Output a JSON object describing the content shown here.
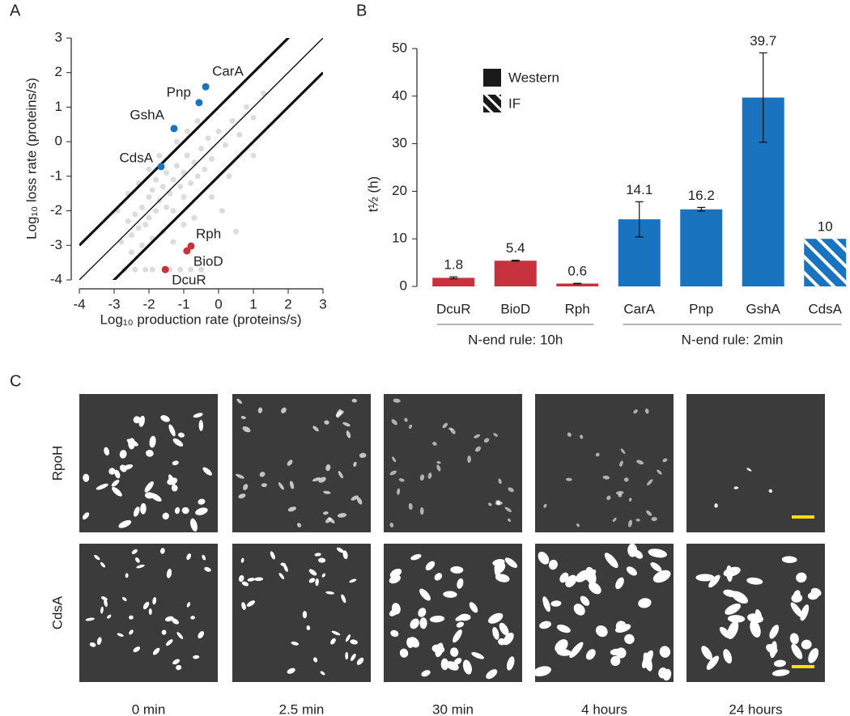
{
  "chart_data": [
    {
      "type": "scatter",
      "panel_label": "A",
      "xlabel": "Log₁₀ production rate (proteins/s)",
      "ylabel": "Log₁₀ loss rate (proteins/s)",
      "xlim": [
        -4,
        3
      ],
      "ylim": [
        -4,
        3
      ],
      "xticks": [
        -4,
        -3,
        -2,
        -1,
        0,
        1,
        2,
        3
      ],
      "yticks": [
        -4,
        -3,
        -2,
        -1,
        0,
        1,
        2,
        3
      ],
      "reference_lines": [
        {
          "slope": 1,
          "intercept": 1,
          "thick": true
        },
        {
          "slope": 1,
          "intercept": 0,
          "thick": false
        },
        {
          "slope": 1,
          "intercept": -1,
          "thick": true
        }
      ],
      "background_points": {
        "color": "#8a8a8a",
        "x": [
          -2.8,
          -2.6,
          -2.5,
          -2.4,
          -2.3,
          -2.2,
          -2.1,
          -2.0,
          -2.0,
          -1.9,
          -1.8,
          -1.8,
          -1.7,
          -1.6,
          -1.5,
          -1.5,
          -1.4,
          -1.3,
          -1.3,
          -1.2,
          -1.1,
          -1.0,
          -1.0,
          -0.9,
          -0.8,
          -0.7,
          -0.6,
          -0.5,
          -0.4,
          -0.3,
          -0.2,
          0.0,
          0.2,
          0.4,
          0.6,
          0.8,
          1.0,
          1.3,
          -2.7,
          -2.4,
          -2.1,
          -1.9,
          -1.4,
          -1.1,
          -0.8,
          -0.5,
          -2.5,
          -2.2,
          -1.9,
          -1.6,
          -1.3,
          -1.0,
          -0.7,
          -0.2,
          0.3,
          -2.9,
          -2.6,
          -2.3,
          -2.0,
          -1.7,
          -1.2,
          -0.9,
          -0.6,
          0.1,
          0.5,
          1.0
        ],
        "y": [
          -2.9,
          -2.3,
          -2.7,
          -2.1,
          -2.5,
          -1.9,
          -2.4,
          -1.6,
          -2.2,
          -1.4,
          -2.0,
          -1.1,
          -1.7,
          -1.3,
          -1.9,
          -0.9,
          -1.5,
          -1.1,
          -2.0,
          -0.7,
          -1.3,
          -0.9,
          -1.6,
          -0.4,
          -1.2,
          -0.6,
          -1.0,
          -0.2,
          -0.8,
          0.1,
          -0.5,
          0.3,
          -0.1,
          0.6,
          0.2,
          1.0,
          0.7,
          1.4,
          -3.7,
          -3.7,
          -3.7,
          -3.7,
          -3.7,
          -3.7,
          -3.7,
          -3.7,
          -3.2,
          -3.0,
          -2.8,
          -2.6,
          -2.9,
          -2.4,
          -2.2,
          -1.6,
          -1.0,
          -2.0,
          -1.5,
          -1.2,
          -0.8,
          -0.4,
          0.0,
          0.3,
          0.6,
          -2.0,
          -2.6,
          -0.4
        ]
      },
      "points": [
        {
          "label": "CarA",
          "x": -0.37,
          "y": 1.59,
          "color": "#1a73be"
        },
        {
          "label": "Pnp",
          "x": -0.56,
          "y": 1.13,
          "color": "#1a73be"
        },
        {
          "label": "GshA",
          "x": -1.28,
          "y": 0.38,
          "color": "#1a73be"
        },
        {
          "label": "CdsA",
          "x": -1.65,
          "y": -0.72,
          "color": "#1a73be"
        },
        {
          "label": "Rph",
          "x": -0.79,
          "y": -3.02,
          "color": "#c8323f"
        },
        {
          "label": "BioD",
          "x": -0.91,
          "y": -3.16,
          "color": "#c8323f"
        },
        {
          "label": "DcuR",
          "x": -1.53,
          "y": -3.7,
          "color": "#c8323f"
        }
      ]
    },
    {
      "type": "bar",
      "panel_label": "B",
      "ylabel": "t½ (h)",
      "categories": [
        "DcuR",
        "BioD",
        "Rph",
        "CarA",
        "Pnp",
        "GshA",
        "CdsA"
      ],
      "values": [
        1.8,
        5.4,
        0.6,
        14.1,
        16.2,
        39.7,
        10
      ],
      "errors": [
        0.2,
        0.1,
        0.05,
        3.7,
        0.4,
        9.4,
        null
      ],
      "colors": [
        "#c8323f",
        "#c8323f",
        "#c8323f",
        "#1a73be",
        "#1a73be",
        "#1a73be",
        "#1a73be"
      ],
      "bar_patterns": [
        "solid",
        "solid",
        "solid",
        "solid",
        "solid",
        "solid",
        "hatch"
      ],
      "legend": [
        {
          "name": "Western",
          "pattern": "solid"
        },
        {
          "name": "IF",
          "pattern": "hatch"
        }
      ],
      "groups": [
        {
          "label": "N-end rule: 10h",
          "size": 3
        },
        {
          "label": "N-end rule: 2min",
          "size": 4
        }
      ],
      "ylim": [
        0,
        50
      ],
      "yticks": [
        0,
        10,
        20,
        30,
        40,
        50
      ]
    }
  ],
  "panel_c": {
    "panel_label": "C",
    "rows": [
      "RpoH",
      "CdsA"
    ],
    "columns": [
      "0 min",
      "2.5 min",
      "30 min",
      "4 hours",
      "24 hours"
    ]
  }
}
